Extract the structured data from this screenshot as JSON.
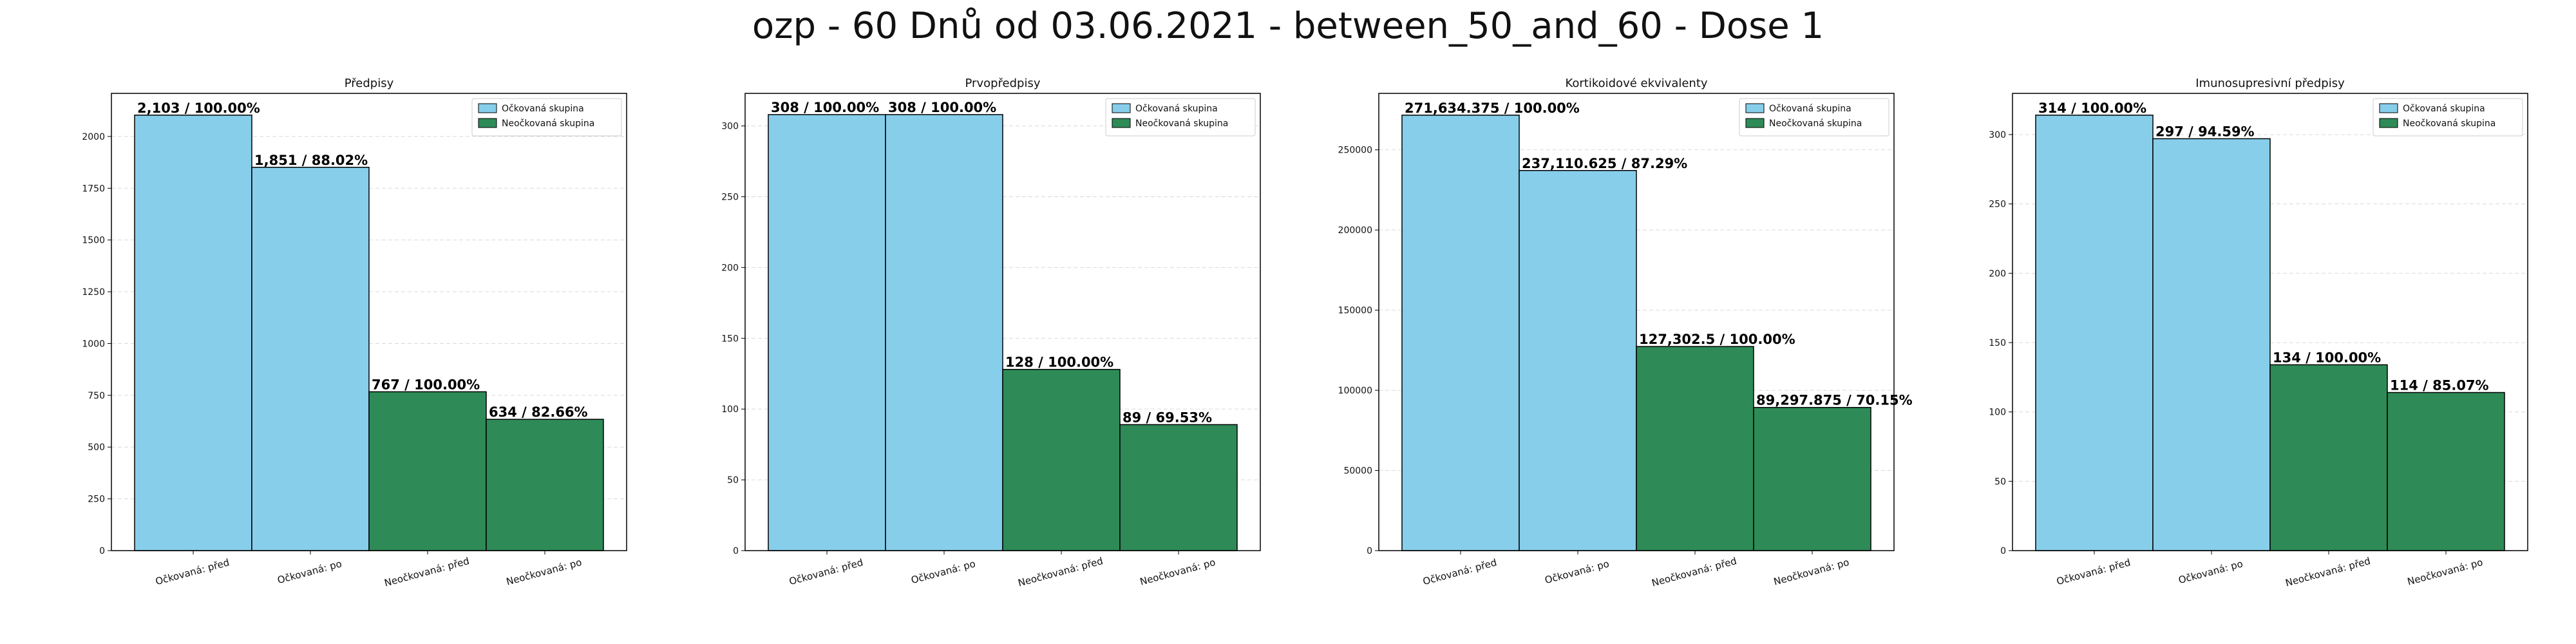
{
  "suptitle": "ozp - 60 Dnů od 03.06.2021 - between_50_and_60 - Dose 1",
  "colors": {
    "vaccinated": "#87ceeb",
    "unvaccinated": "#2e8b57",
    "edge": "#000000",
    "grid": "#d9d9d9"
  },
  "legend": [
    "Očkovaná skupina",
    "Neočkovaná skupina"
  ],
  "chart_data": [
    {
      "type": "bar",
      "title": "Předpisy",
      "categories": [
        "Očkovaná: před",
        "Očkovaná: po",
        "Neočkovaná: před",
        "Neočkovaná: po"
      ],
      "values": [
        2103,
        1851,
        767,
        634
      ],
      "labels": [
        "2,103 / 100.00%",
        "1,851 / 88.02%",
        "767 / 100.00%",
        "634 / 82.66%"
      ],
      "ylim": [
        0,
        2208
      ],
      "yticks": [
        0,
        250,
        500,
        750,
        1000,
        1250,
        1500,
        1750,
        2000
      ],
      "ytick_labels": [
        "0",
        "250",
        "500",
        "750",
        "1000",
        "1250",
        "1500",
        "1750",
        "2000"
      ],
      "grid": "y",
      "legend_position": "top-right"
    },
    {
      "type": "bar",
      "title": "Prvopředpisy",
      "categories": [
        "Očkovaná: před",
        "Očkovaná: po",
        "Neočkovaná: před",
        "Neočkovaná: po"
      ],
      "values": [
        308,
        308,
        128,
        89
      ],
      "labels": [
        "308 / 100.00%",
        "308 / 100.00%",
        "128 / 100.00%",
        "89 / 69.53%"
      ],
      "ylim": [
        0,
        323
      ],
      "yticks": [
        0,
        50,
        100,
        150,
        200,
        250,
        300
      ],
      "ytick_labels": [
        "0",
        "50",
        "100",
        "150",
        "200",
        "250",
        "300"
      ],
      "grid": "y",
      "legend_position": "top-right"
    },
    {
      "type": "bar",
      "title": "Kortikoidové ekvivalenty",
      "categories": [
        "Očkovaná: před",
        "Očkovaná: po",
        "Neočkovaná: před",
        "Neočkovaná: po"
      ],
      "values": [
        271634.375,
        237110.625,
        127302.5,
        89297.875
      ],
      "labels": [
        "271,634.375 / 100.00%",
        "237,110.625 / 87.29%",
        "127,302.5 / 100.00%",
        "89,297.875 / 70.15%"
      ],
      "ylim": [
        0,
        285216
      ],
      "yticks": [
        0,
        50000,
        100000,
        150000,
        200000,
        250000
      ],
      "ytick_labels": [
        "0",
        "50000",
        "100000",
        "150000",
        "200000",
        "250000"
      ],
      "grid": "y",
      "legend_position": "top-right"
    },
    {
      "type": "bar",
      "title": "Imunosupresivní předpisy",
      "categories": [
        "Očkovaná: před",
        "Očkovaná: po",
        "Neočkovaná: před",
        "Neočkovaná: po"
      ],
      "values": [
        314,
        297,
        134,
        114
      ],
      "labels": [
        "314 / 100.00%",
        "297 / 94.59%",
        "134 / 100.00%",
        "114 / 85.07%"
      ],
      "ylim": [
        0,
        329.7
      ],
      "yticks": [
        0,
        50,
        100,
        150,
        200,
        250,
        300
      ],
      "ytick_labels": [
        "0",
        "50",
        "100",
        "150",
        "200",
        "250",
        "300"
      ],
      "grid": "y",
      "legend_position": "top-right"
    }
  ]
}
